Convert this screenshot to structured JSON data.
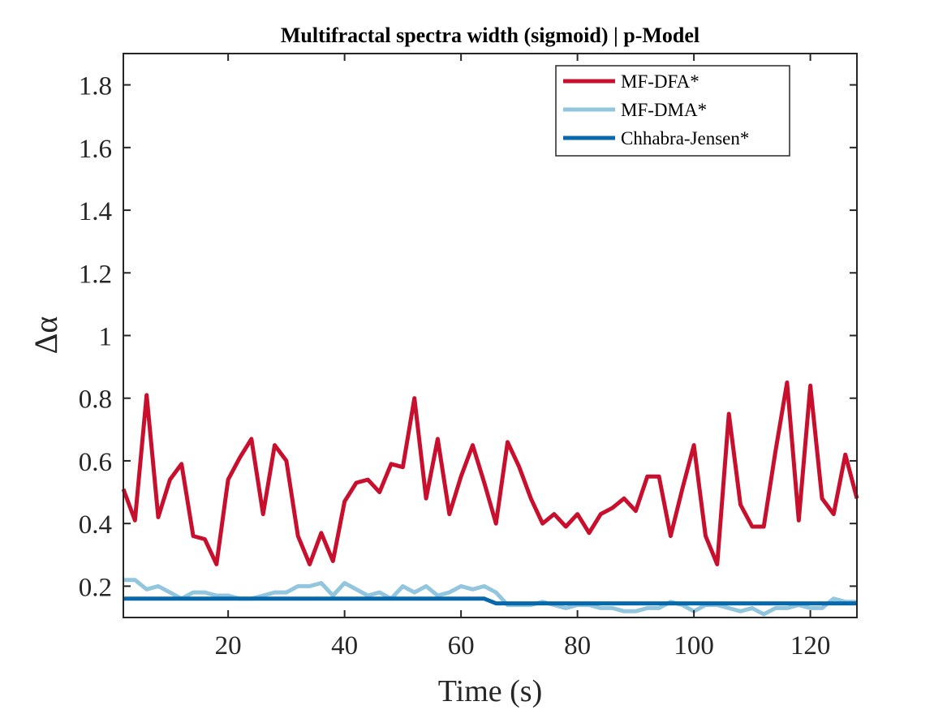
{
  "chart_data": {
    "type": "line",
    "title": "Multifractal spectra width (sigmoid) | p-Model",
    "xlabel": "Time (s)",
    "ylabel_symbol": "Δα",
    "xlim": [
      2,
      128
    ],
    "ylim": [
      0.1,
      1.9
    ],
    "xticks": [
      20,
      40,
      60,
      80,
      100,
      120
    ],
    "yticks": [
      0.2,
      0.4,
      0.6,
      0.8,
      1,
      1.2,
      1.4,
      1.6,
      1.8
    ],
    "ytick_labels": [
      "0.2",
      "0.4",
      "0.6",
      "0.8",
      "1",
      "1.2",
      "1.4",
      "1.6",
      "1.8"
    ],
    "grid": false,
    "legend_position": "top-right",
    "x": [
      2,
      4,
      6,
      8,
      10,
      12,
      14,
      16,
      18,
      20,
      22,
      24,
      26,
      28,
      30,
      32,
      34,
      36,
      38,
      40,
      42,
      44,
      46,
      48,
      50,
      52,
      54,
      56,
      58,
      60,
      62,
      64,
      66,
      68,
      70,
      72,
      74,
      76,
      78,
      80,
      82,
      84,
      86,
      88,
      90,
      92,
      94,
      96,
      98,
      100,
      102,
      104,
      106,
      108,
      110,
      112,
      114,
      116,
      118,
      120,
      122,
      124,
      126,
      128
    ],
    "series": [
      {
        "name": "MF-DFA*",
        "color": "#C8102E",
        "values": [
          0.51,
          0.41,
          0.81,
          0.42,
          0.54,
          0.59,
          0.36,
          0.35,
          0.27,
          0.54,
          0.61,
          0.67,
          0.43,
          0.65,
          0.6,
          0.36,
          0.27,
          0.37,
          0.28,
          0.47,
          0.53,
          0.54,
          0.5,
          0.59,
          0.58,
          0.8,
          0.48,
          0.67,
          0.43,
          0.55,
          0.65,
          0.53,
          0.4,
          0.66,
          0.58,
          0.48,
          0.4,
          0.43,
          0.39,
          0.43,
          0.37,
          0.43,
          0.45,
          0.48,
          0.44,
          0.55,
          0.55,
          0.36,
          0.51,
          0.65,
          0.36,
          0.27,
          0.75,
          0.46,
          0.39,
          0.39,
          0.63,
          0.85,
          0.41,
          0.84,
          0.48,
          0.43,
          0.62,
          0.48
        ]
      },
      {
        "name": "MF-DMA*",
        "color": "#92C5DE",
        "values": [
          0.22,
          0.22,
          0.19,
          0.2,
          0.18,
          0.16,
          0.18,
          0.18,
          0.17,
          0.17,
          0.16,
          0.16,
          0.17,
          0.18,
          0.18,
          0.2,
          0.2,
          0.21,
          0.17,
          0.21,
          0.19,
          0.17,
          0.18,
          0.16,
          0.2,
          0.18,
          0.2,
          0.17,
          0.18,
          0.2,
          0.19,
          0.2,
          0.18,
          0.14,
          0.14,
          0.14,
          0.15,
          0.14,
          0.13,
          0.14,
          0.14,
          0.13,
          0.13,
          0.12,
          0.12,
          0.13,
          0.13,
          0.15,
          0.14,
          0.12,
          0.14,
          0.14,
          0.13,
          0.12,
          0.13,
          0.11,
          0.13,
          0.13,
          0.14,
          0.13,
          0.13,
          0.16,
          0.15,
          0.15
        ]
      },
      {
        "name": "Chhabra-Jensen*",
        "color": "#0868AC",
        "values": [
          0.16,
          0.16,
          0.16,
          0.16,
          0.16,
          0.16,
          0.16,
          0.16,
          0.16,
          0.16,
          0.16,
          0.16,
          0.16,
          0.16,
          0.16,
          0.16,
          0.16,
          0.16,
          0.16,
          0.16,
          0.16,
          0.16,
          0.16,
          0.16,
          0.16,
          0.16,
          0.16,
          0.16,
          0.16,
          0.16,
          0.16,
          0.16,
          0.145,
          0.145,
          0.145,
          0.145,
          0.145,
          0.145,
          0.145,
          0.145,
          0.145,
          0.145,
          0.145,
          0.145,
          0.145,
          0.145,
          0.145,
          0.145,
          0.145,
          0.145,
          0.145,
          0.145,
          0.145,
          0.145,
          0.145,
          0.145,
          0.145,
          0.145,
          0.145,
          0.145,
          0.145,
          0.145,
          0.145,
          0.145
        ]
      }
    ]
  }
}
